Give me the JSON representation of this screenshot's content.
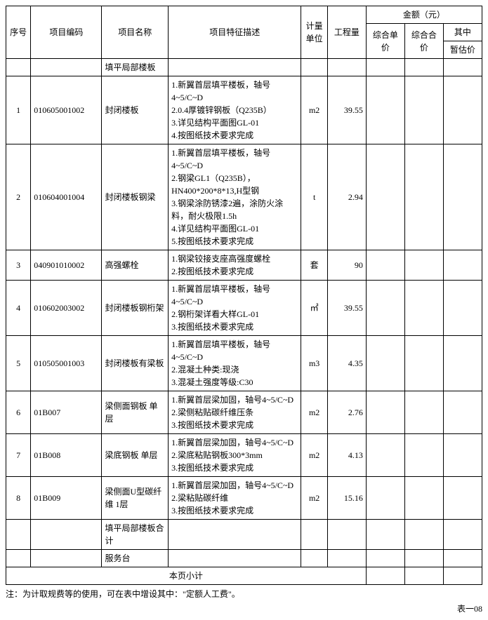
{
  "header": {
    "seq": "序号",
    "code": "项目编码",
    "name": "项目名称",
    "desc": "项目特征描述",
    "unit": "计量单位",
    "qty": "工程量",
    "amount_group": "金额（元）",
    "unit_price": "综合单价",
    "total_price": "综合合价",
    "of_which": "其中",
    "est_price": "暂估价"
  },
  "section_title": "填平局部楼板",
  "rows": [
    {
      "seq": "1",
      "code": "010605001002",
      "name": "封闭楼板",
      "desc": "1.新翼首层填平楼板，轴号4~5/C~D\n2.0.4厚镀锌钢板（Q235B）\n3.详见结构平面图GL-01\n4.按图纸技术要求完成",
      "unit": "m2",
      "qty": "39.55"
    },
    {
      "seq": "2",
      "code": "010604001004",
      "name": "封闭楼板钢梁",
      "desc": "1.新翼首层填平楼板，轴号4~5/C~D\n2.钢梁GL1（Q235B），HN400*200*8*13,H型钢\n3.钢梁涂防锈漆2遍，涂防火涂料，耐火极限1.5h\n4.详见结构平面图GL-01\n5.按图纸技术要求完成",
      "unit": "t",
      "qty": "2.94"
    },
    {
      "seq": "3",
      "code": "040901010002",
      "name": "高强螺栓",
      "desc": "1.钢梁铰接支座高强度螺栓\n2.按图纸技术要求完成",
      "unit": "套",
      "qty": "90"
    },
    {
      "seq": "4",
      "code": "010602003002",
      "name": "封闭楼板钢桁架",
      "desc": "1.新翼首层填平楼板，轴号4~5/C~D\n2.钢桁架详看大样GL-01\n3.按图纸技术要求完成",
      "unit": "㎡",
      "qty": "39.55"
    },
    {
      "seq": "5",
      "code": "010505001003",
      "name": "封闭楼板有梁板",
      "desc": "1.新翼首层填平楼板，轴号4~5/C~D\n2.混凝土种类:现浇\n3.混凝土强度等级:C30",
      "unit": "m3",
      "qty": "4.35"
    },
    {
      "seq": "6",
      "code": "01B007",
      "name": "梁侧面钢板 单层",
      "desc": "1.新翼首层梁加固，轴号4~5/C~D\n2.梁侧粘贴碳纤维压条\n3.按图纸技术要求完成",
      "unit": "m2",
      "qty": "2.76"
    },
    {
      "seq": "7",
      "code": "01B008",
      "name": "梁底钢板 单层",
      "desc": "1.新翼首层梁加固，轴号4~5/C~D\n2.梁底粘贴钢板300*3mm\n3.按图纸技术要求完成",
      "unit": "m2",
      "qty": "4.13"
    },
    {
      "seq": "8",
      "code": "01B009",
      "name": "梁侧面U型碳纤维 1层",
      "desc": "1.新翼首层梁加固，轴号4~5/C~D\n2.梁粘贴碳纤维\n3.按图纸技术要求完成",
      "unit": "m2",
      "qty": "15.16"
    }
  ],
  "subtotal_section": "填平局部楼板合计",
  "service_desk": "服务台",
  "page_subtotal": "本页小计",
  "footnote": "注：为计取规费等的使用，可在表中增设其中：\"定额人工费\"。",
  "page_label": "表一08"
}
